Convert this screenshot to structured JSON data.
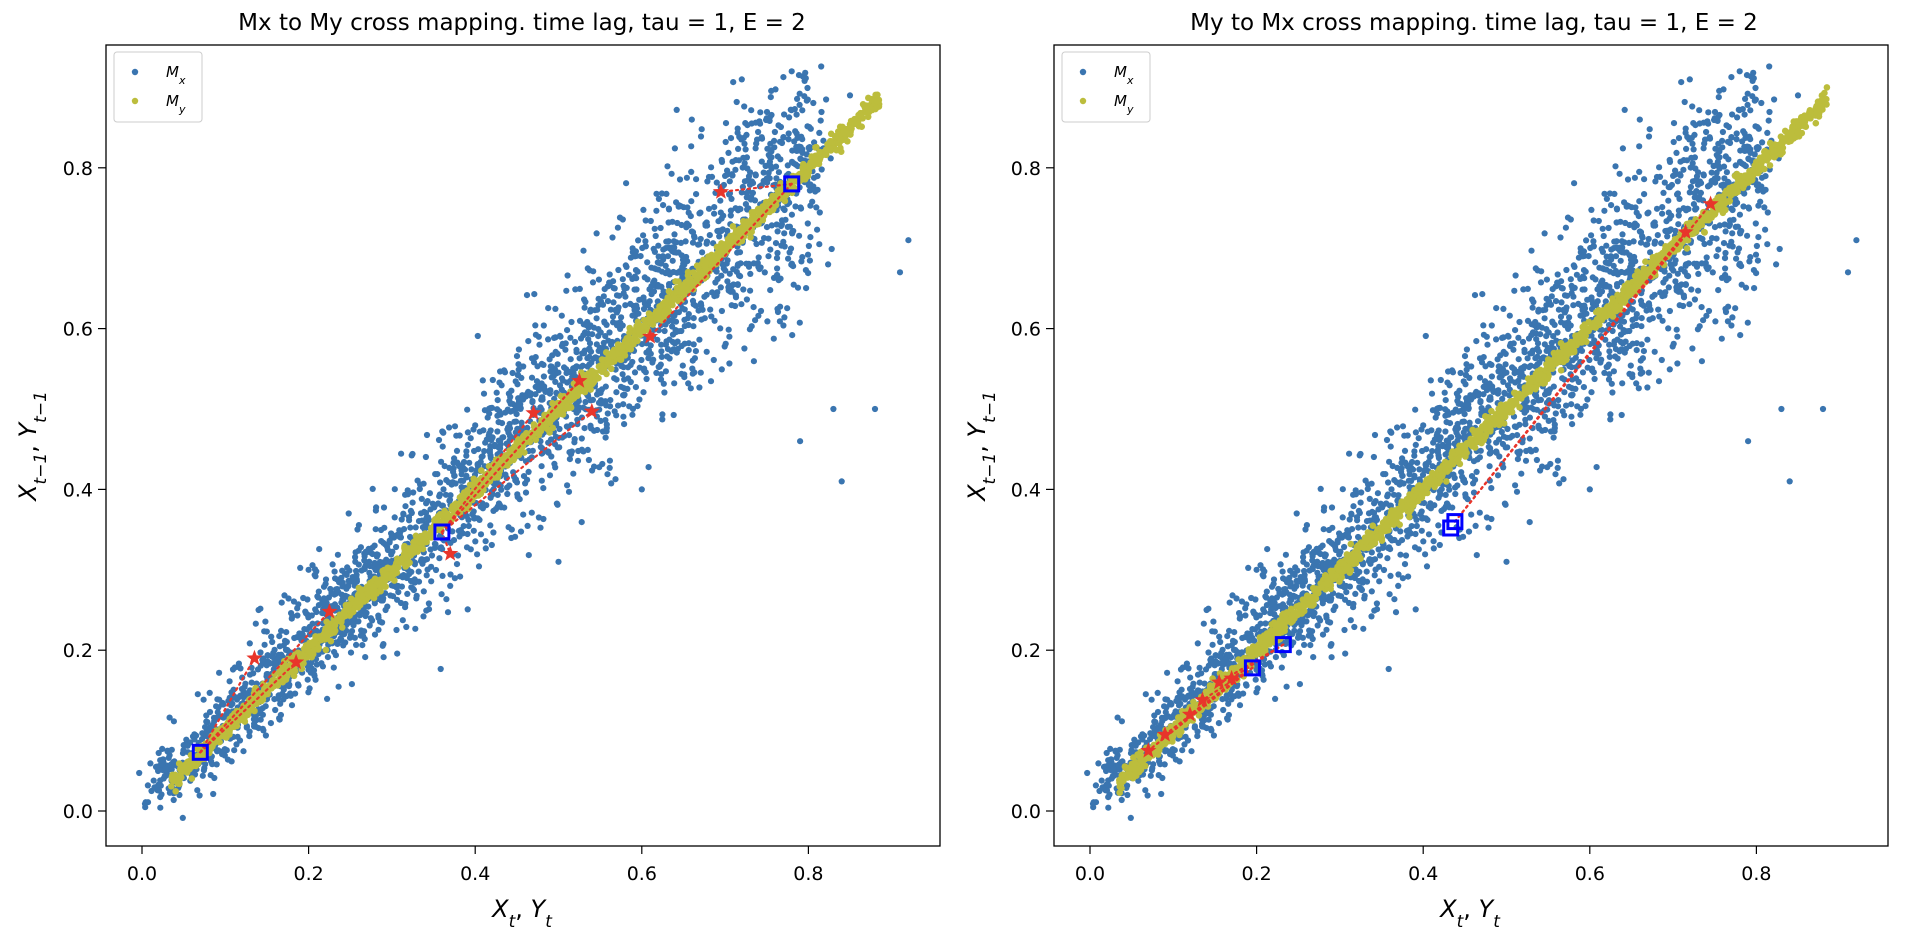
{
  "colors": {
    "mx": "#3a75b0",
    "my": "#bcbd3c",
    "star": "#e8352b",
    "box": "#0000ff",
    "frame": "#000000"
  },
  "legend": {
    "mx_base": "M",
    "mx_sub": "x",
    "my_base": "M",
    "my_sub": "y"
  },
  "axis_text": {
    "xlabel_base1": "X",
    "xlabel_sub1": "t",
    "xlabel_mid": ", ",
    "xlabel_base2": "Y",
    "xlabel_sub2": "t",
    "ylabel_base1": "X",
    "ylabel_sub1": "t−1",
    "ylabel_mid": ", ",
    "ylabel_base2": "Y",
    "ylabel_sub2": "t−1"
  },
  "chart_data": [
    {
      "type": "scatter",
      "title": "Mx to My cross mapping. time lag, tau = 1, E = 2",
      "xlabel": "X_t, Y_t",
      "ylabel": "X_{t-1}, Y_{t-1}",
      "xlim": [
        -0.045,
        0.96
      ],
      "ylim": [
        -0.045,
        0.96
      ],
      "xticks": [
        0.0,
        0.2,
        0.4,
        0.6,
        0.8
      ],
      "yticks": [
        0.0,
        0.2,
        0.4,
        0.6,
        0.8
      ],
      "tick_labels": [
        "0.0",
        "0.2",
        "0.4",
        "0.6",
        "0.8"
      ],
      "legend_position": "upper left",
      "series": [
        {
          "name": "M_x",
          "kind": "cloud",
          "description": "blue scatter around the diagonal, x from 0.0 to 0.92",
          "sample": [
            [
              0.66,
              0.86
            ],
            [
              0.72,
              0.91
            ],
            [
              0.78,
              0.92
            ],
            [
              0.85,
              0.89
            ],
            [
              0.92,
              0.71
            ],
            [
              0.91,
              0.67
            ],
            [
              0.84,
              0.41
            ],
            [
              0.79,
              0.46
            ],
            [
              0.83,
              0.5
            ],
            [
              0.88,
              0.5
            ],
            [
              0.37,
              0.28
            ],
            [
              0.5,
              0.31
            ],
            [
              0.6,
              0.4
            ],
            [
              0.14,
              0.25
            ],
            [
              0.2,
              0.3
            ]
          ]
        },
        {
          "name": "M_y",
          "kind": "band",
          "description": "olive dense band along y = x",
          "x_range": [
            0.035,
            0.885
          ]
        }
      ],
      "markers": {
        "targets": [
          [
            0.07,
            0.073
          ],
          [
            0.36,
            0.347
          ],
          [
            0.78,
            0.78
          ]
        ],
        "neighbors": [
          {
            "from": [
              0.07,
              0.073
            ],
            "to": [
              0.135,
              0.19
            ]
          },
          {
            "from": [
              0.07,
              0.073
            ],
            "to": [
              0.185,
              0.185
            ]
          },
          {
            "from": [
              0.07,
              0.073
            ],
            "to": [
              0.225,
              0.248
            ]
          },
          {
            "from": [
              0.36,
              0.347
            ],
            "to": [
              0.47,
              0.495
            ]
          },
          {
            "from": [
              0.36,
              0.347
            ],
            "to": [
              0.525,
              0.535
            ]
          },
          {
            "from": [
              0.36,
              0.347
            ],
            "to": [
              0.54,
              0.497
            ]
          },
          {
            "from": [
              0.36,
              0.347
            ],
            "to": [
              0.37,
              0.32
            ]
          },
          {
            "from": [
              0.78,
              0.78
            ],
            "to": [
              0.61,
              0.59
            ]
          },
          {
            "from": [
              0.78,
              0.78
            ],
            "to": [
              0.695,
              0.77
            ]
          }
        ]
      }
    },
    {
      "type": "scatter",
      "title": "My to Mx cross mapping. time lag, tau = 1, E = 2",
      "xlabel": "X_t, Y_t",
      "ylabel": "X_{t-1}, Y_{t-1}",
      "xlim": [
        -0.045,
        0.96
      ],
      "ylim": [
        -0.045,
        0.96
      ],
      "xticks": [
        0.0,
        0.2,
        0.4,
        0.6,
        0.8
      ],
      "yticks": [
        0.0,
        0.2,
        0.4,
        0.6,
        0.8
      ],
      "tick_labels": [
        "0.0",
        "0.2",
        "0.4",
        "0.6",
        "0.8"
      ],
      "legend_position": "upper left",
      "series": [
        {
          "name": "M_x",
          "kind": "cloud",
          "description": "blue scatter around the diagonal, x from 0.0 to 0.92",
          "sample": [
            [
              0.66,
              0.86
            ],
            [
              0.72,
              0.91
            ],
            [
              0.78,
              0.92
            ],
            [
              0.85,
              0.89
            ],
            [
              0.92,
              0.71
            ],
            [
              0.91,
              0.67
            ],
            [
              0.84,
              0.41
            ],
            [
              0.79,
              0.46
            ],
            [
              0.83,
              0.5
            ],
            [
              0.88,
              0.5
            ],
            [
              0.37,
              0.28
            ],
            [
              0.5,
              0.31
            ],
            [
              0.6,
              0.4
            ],
            [
              0.14,
              0.25
            ],
            [
              0.2,
              0.3
            ]
          ]
        },
        {
          "name": "M_y",
          "kind": "band",
          "description": "olive dense band along y = x",
          "x_range": [
            0.035,
            0.885
          ]
        }
      ],
      "markers": {
        "targets": [
          [
            0.195,
            0.178
          ],
          [
            0.232,
            0.207
          ],
          [
            0.433,
            0.352
          ],
          [
            0.438,
            0.36
          ]
        ],
        "neighbors": [
          {
            "from": [
              0.195,
              0.178
            ],
            "to": [
              0.07,
              0.075
            ]
          },
          {
            "from": [
              0.195,
              0.178
            ],
            "to": [
              0.09,
              0.095
            ]
          },
          {
            "from": [
              0.195,
              0.178
            ],
            "to": [
              0.12,
              0.12
            ]
          },
          {
            "from": [
              0.195,
              0.178
            ],
            "to": [
              0.135,
              0.138
            ]
          },
          {
            "from": [
              0.232,
              0.207
            ],
            "to": [
              0.155,
              0.16
            ]
          },
          {
            "from": [
              0.232,
              0.207
            ],
            "to": [
              0.17,
              0.165
            ]
          },
          {
            "from": [
              0.438,
              0.36
            ],
            "to": [
              0.715,
              0.72
            ]
          },
          {
            "from": [
              0.438,
              0.36
            ],
            "to": [
              0.745,
              0.755
            ]
          }
        ]
      }
    }
  ]
}
